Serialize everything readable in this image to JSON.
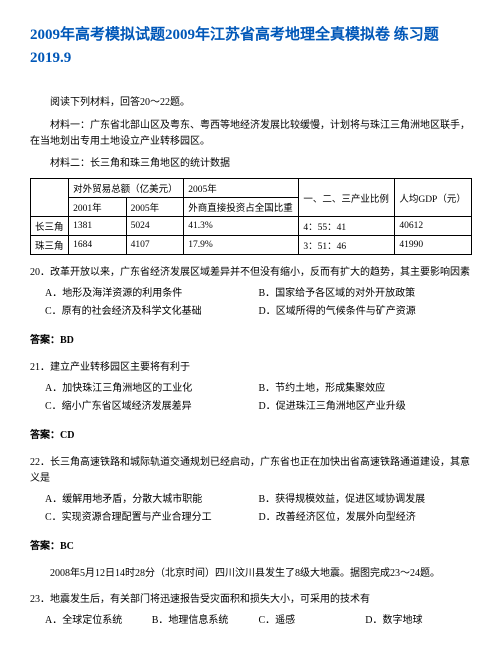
{
  "title": "2009年高考模拟试题2009年江苏省高考地理全真模拟卷 练习题 2019.9",
  "intro": "阅读下列材料，回答20～22题。",
  "mat1": "材料一：广东省北部山区及粤东、粤西等地经济发展比较缓慢，计划将与珠江三角洲地区联手，在当地划出专用土地设立产业转移园区。",
  "mat2": "材料二：长三角和珠三角地区的统计数据",
  "table": {
    "h": [
      "",
      "对外贸易总额（亿美元）",
      "",
      "外商直接投资占全国比重",
      "一、二、三产业比例",
      "人均GDP（元）"
    ],
    "sub": [
      "",
      "2001年",
      "2005年",
      "2005年",
      "",
      ""
    ],
    "r1": [
      "长三角",
      "1381",
      "5024",
      "41.3%",
      "4：55：41",
      "40612"
    ],
    "r2": [
      "珠三角",
      "1684",
      "4107",
      "17.9%",
      "3：51：46",
      "41990"
    ]
  },
  "q20": {
    "stem": "20．改革开放以来，广东省经济发展区域差异并不但没有缩小，反而有扩大的趋势，其主要影响因素",
    "a": "A．地形及海洋资源的利用条件",
    "b": "B．国家给予各区域的对外开放政策",
    "c": "C．原有的社会经济及科学文化基础",
    "d": "D．区域所得的气候条件与矿产资源",
    "ans": "答案：BD"
  },
  "q21": {
    "stem": "21．建立产业转移园区主要将有利于",
    "a": "A．加快珠江三角洲地区的工业化",
    "b": "B．节约土地，形成集聚效应",
    "c": "C．缩小广东省区域经济发展差异",
    "d": "D．促进珠江三角洲地区产业升级",
    "ans": "答案：CD"
  },
  "q22": {
    "stem": "22．长三角高速铁路和城际轨道交通规划已经启动，广东省也正在加快出省高速铁路通道建设，其意义是",
    "a": "A．缓解用地矛盾，分散大城市职能",
    "b": "B．获得规模效益，促进区域协调发展",
    "c": "C．实现资源合理配置与产业合理分工",
    "d": "D．改善经济区位，发展外向型经济",
    "ans": "答案：BC"
  },
  "ctx23": "2008年5月12日14时28分（北京时间）四川汶川县发生了8级大地震。据图完成23～24题。",
  "q23": {
    "stem": "23．地震发生后，有关部门将迅速报告受灾面积和损失大小，可采用的技术有",
    "a": "A．全球定位系统",
    "b": "B．地理信息系统",
    "c": "C．遥感",
    "d": "D．数字地球"
  }
}
